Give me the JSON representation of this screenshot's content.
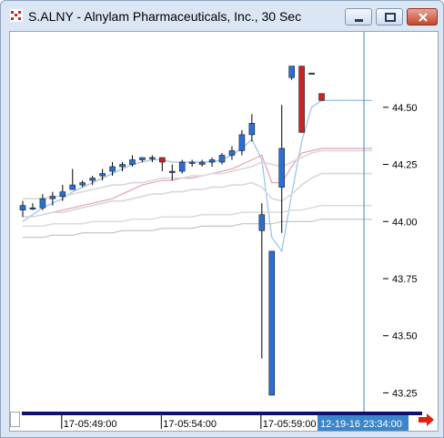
{
  "window": {
    "title": "S.ALNY - Alnylam Pharmaceuticals, Inc., 30 Sec",
    "buttons": [
      "minimize",
      "maximize",
      "close"
    ]
  },
  "colors": {
    "up_candle": "#2a6fd6",
    "down_candle": "#cc2222",
    "ma_fast": "#9ec4ea",
    "ma_pink": "#e8a0b8",
    "ma_light_gray": "#d8d8d8",
    "ma_dark_gray": "#b8b8b8",
    "cursor_line": "#3a86c8",
    "time_scrollbar": "#10106e",
    "cursor_label_bg": "#3a86c8",
    "arrow_red": "#e02010"
  },
  "chart_data": {
    "type": "candlestick",
    "title": "S.ALNY - Alnylam Pharmaceuticals, Inc., 30 Sec",
    "yaxis_position": "right",
    "ylim": [
      43.18,
      44.83
    ],
    "y_ticks": [
      "44.50",
      "44.25",
      "44.00",
      "43.75",
      "43.50",
      "43.25"
    ],
    "y_tick_values": [
      44.5,
      44.25,
      44.0,
      43.75,
      43.5,
      43.25
    ],
    "x_labels": [
      "17-05:49:00",
      "17-05:54:00",
      "17-05:59:00"
    ],
    "x_label_bar_index": [
      4,
      14,
      24
    ],
    "cursor_time_label": "12-19-16 23:34:00",
    "grid": false,
    "candles": [
      {
        "o": 44.05,
        "h": 44.09,
        "l": 44.02,
        "c": 44.07
      },
      {
        "o": 44.06,
        "h": 44.08,
        "l": 44.05,
        "c": 44.06
      },
      {
        "o": 44.06,
        "h": 44.12,
        "l": 44.05,
        "c": 44.1
      },
      {
        "o": 44.1,
        "h": 44.13,
        "l": 44.07,
        "c": 44.11
      },
      {
        "o": 44.11,
        "h": 44.16,
        "l": 44.09,
        "c": 44.13
      },
      {
        "o": 44.14,
        "h": 44.23,
        "l": 44.14,
        "c": 44.16
      },
      {
        "o": 44.16,
        "h": 44.18,
        "l": 44.15,
        "c": 44.17
      },
      {
        "o": 44.18,
        "h": 44.2,
        "l": 44.16,
        "c": 44.19
      },
      {
        "o": 44.2,
        "h": 44.23,
        "l": 44.18,
        "c": 44.21
      },
      {
        "o": 44.22,
        "h": 44.26,
        "l": 44.2,
        "c": 44.24
      },
      {
        "o": 44.24,
        "h": 44.26,
        "l": 44.22,
        "c": 44.25
      },
      {
        "o": 44.25,
        "h": 44.29,
        "l": 44.24,
        "c": 44.27
      },
      {
        "o": 44.27,
        "h": 44.28,
        "l": 44.26,
        "c": 44.28
      },
      {
        "o": 44.28,
        "h": 44.29,
        "l": 44.26,
        "c": 44.28
      },
      {
        "o": 44.28,
        "h": 44.28,
        "l": 44.22,
        "c": 44.26
      },
      {
        "o": 44.22,
        "h": 44.25,
        "l": 44.18,
        "c": 44.22
      },
      {
        "o": 44.22,
        "h": 44.27,
        "l": 44.21,
        "c": 44.26
      },
      {
        "o": 44.26,
        "h": 44.27,
        "l": 44.24,
        "c": 44.26
      },
      {
        "o": 44.25,
        "h": 44.27,
        "l": 44.24,
        "c": 44.26
      },
      {
        "o": 44.26,
        "h": 44.28,
        "l": 44.24,
        "c": 44.27
      },
      {
        "o": 44.26,
        "h": 44.3,
        "l": 44.25,
        "c": 44.29
      },
      {
        "o": 44.29,
        "h": 44.33,
        "l": 44.27,
        "c": 44.31
      },
      {
        "o": 44.31,
        "h": 44.4,
        "l": 44.29,
        "c": 44.38
      },
      {
        "o": 44.38,
        "h": 44.47,
        "l": 44.35,
        "c": 44.43
      },
      {
        "o": 43.96,
        "h": 44.08,
        "l": 43.4,
        "c": 44.03
      },
      {
        "o": 43.24,
        "h": 43.87,
        "l": 43.24,
        "c": 43.87
      },
      {
        "o": 44.15,
        "h": 44.51,
        "l": 43.95,
        "c": 44.32
      },
      {
        "o": 44.63,
        "h": 44.68,
        "l": 44.62,
        "c": 44.68
      },
      {
        "o": 44.68,
        "h": 44.68,
        "l": 44.39,
        "c": 44.39
      },
      {
        "o": 44.65,
        "h": 44.65,
        "l": 44.65,
        "c": 44.65
      },
      {
        "o": 44.56,
        "h": 44.56,
        "l": 44.53,
        "c": 44.53
      }
    ],
    "series": [
      {
        "values": [
          44.0,
          44.03,
          44.06,
          44.08,
          44.1,
          44.13,
          44.15,
          44.17,
          44.19,
          44.21,
          44.23,
          44.25,
          44.26,
          44.27,
          44.27,
          44.26,
          44.26,
          44.26,
          44.26,
          44.26,
          44.27,
          44.29,
          44.32,
          44.36,
          44.27,
          43.93,
          43.87,
          44.12,
          44.35,
          44.5,
          44.53
        ]
      },
      {
        "values": [
          44.02,
          44.02,
          44.03,
          44.04,
          44.05,
          44.06,
          44.07,
          44.08,
          44.09,
          44.1,
          44.12,
          44.14,
          44.16,
          44.17,
          44.18,
          44.18,
          44.19,
          44.19,
          44.2,
          44.21,
          44.22,
          44.23,
          44.25,
          44.27,
          44.29,
          44.17,
          44.17,
          44.24,
          44.3,
          44.31,
          44.32
        ]
      },
      {
        "values": [
          44.1,
          44.1,
          44.1,
          44.11,
          44.11,
          44.12,
          44.13,
          44.14,
          44.15,
          44.16,
          44.16,
          44.17,
          44.17,
          44.18,
          44.19,
          44.19,
          44.19,
          44.2,
          44.2,
          44.21,
          44.21,
          44.22,
          44.23,
          44.24,
          44.26,
          44.25,
          44.24,
          44.26,
          44.28,
          44.3,
          44.31
        ]
      },
      {
        "values": [
          44.02,
          44.02,
          44.03,
          44.04,
          44.04,
          44.05,
          44.06,
          44.07,
          44.08,
          44.09,
          44.09,
          44.1,
          44.11,
          44.12,
          44.12,
          44.13,
          44.13,
          44.14,
          44.14,
          44.15,
          44.15,
          44.16,
          44.16,
          44.17,
          44.15,
          44.1,
          44.09,
          44.12,
          44.16,
          44.19,
          44.21
        ]
      },
      {
        "values": [
          43.98,
          43.98,
          43.98,
          43.99,
          43.99,
          43.99,
          43.99,
          44.0,
          44.0,
          44.0,
          44.0,
          44.01,
          44.01,
          44.01,
          44.02,
          44.02,
          44.02,
          44.02,
          44.03,
          44.03,
          44.03,
          44.03,
          44.04,
          44.04,
          44.04,
          44.04,
          44.04,
          44.05,
          44.05,
          44.06,
          44.07
        ]
      },
      {
        "values": [
          43.93,
          43.93,
          43.93,
          43.94,
          43.94,
          43.94,
          43.95,
          43.95,
          43.95,
          43.95,
          43.96,
          43.96,
          43.96,
          43.96,
          43.97,
          43.97,
          43.97,
          43.97,
          43.98,
          43.98,
          43.98,
          43.98,
          43.99,
          43.99,
          43.99,
          43.99,
          44.0,
          44.0,
          44.0,
          44.0,
          44.01
        ]
      }
    ]
  }
}
